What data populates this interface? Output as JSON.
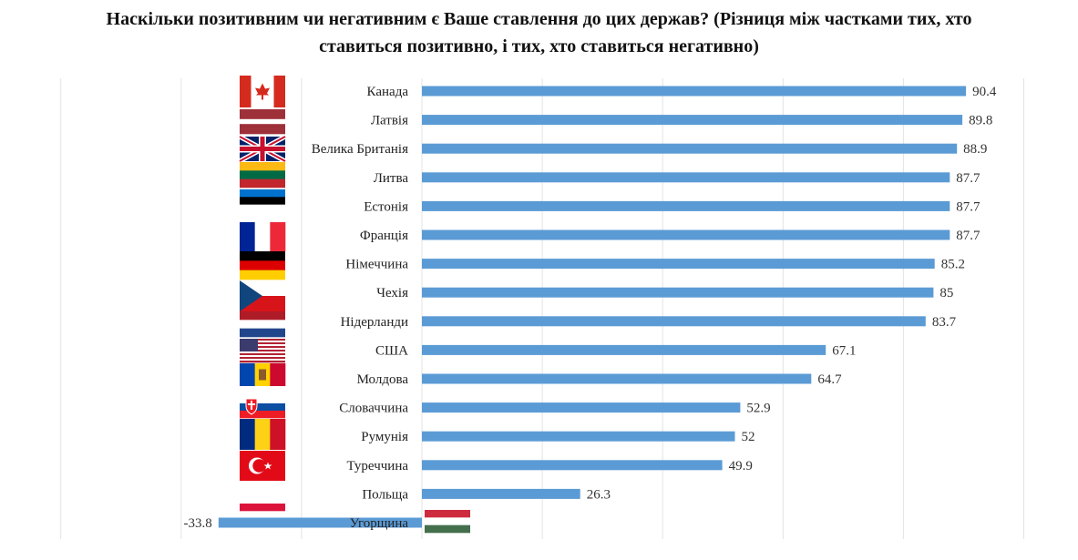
{
  "title_lines": [
    "Наскільки позитивним чи негативним є Ваше ставлення до цих держав? (Різниця між частками тих, хто",
    "ставиться позитивно, і тих, хто ставиться негативно)"
  ],
  "chart_data": {
    "type": "bar",
    "orientation": "horizontal",
    "title": "Наскільки позитивним чи негативним є Ваше ставлення до цих держав? (Різниця між частками тих, хто ставиться позитивно, і тих, хто ставиться негативно)",
    "categories": [
      "Канада",
      "Латвія",
      "Велика Британія",
      "Литва",
      "Естонія",
      "Франція",
      "Німеччина",
      "Чехія",
      "Нідерланди",
      "США",
      "Молдова",
      "Словаччина",
      "Румунія",
      "Туреччина",
      "Польща",
      "Угорщина"
    ],
    "values": [
      90.4,
      89.8,
      88.9,
      87.7,
      87.7,
      87.7,
      85.2,
      85,
      83.7,
      67.1,
      64.7,
      52.9,
      52,
      49.9,
      26.3,
      -33.8
    ],
    "value_labels": [
      "90.4",
      "89.8",
      "88.9",
      "87.7",
      "87.7",
      "87.7",
      "85.2",
      "85",
      "83.7",
      "67.1",
      "64.7",
      "52.9",
      "52",
      "49.9",
      "26.3",
      "-33.8"
    ],
    "flags": [
      "flag-canada",
      "flag-latvia",
      "flag-uk",
      "flag-lithuania",
      "flag-estonia",
      "flag-france",
      "flag-germany",
      "flag-czechia",
      "flag-netherlands",
      "flag-usa",
      "flag-moldova",
      "flag-slovakia",
      "flag-romania",
      "flag-turkey",
      "flag-poland",
      "flag-hungary"
    ],
    "xlim": [
      -60,
      100
    ],
    "grid": true,
    "bar_color": "#5b9bd5",
    "legend": "none"
  }
}
